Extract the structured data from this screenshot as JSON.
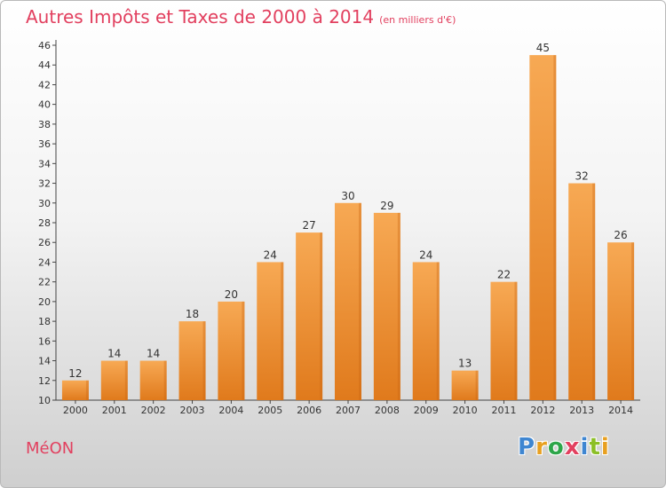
{
  "header": {
    "title": "Autres Impôts et Taxes de 2000 à 2014",
    "unit": "(en milliers d'€)"
  },
  "footer": {
    "commune": "MéON",
    "logo_text": "Proxiti",
    "logo_letters": [
      "P",
      "r",
      "o",
      "x",
      "i",
      "t",
      "i"
    ],
    "logo_colors": [
      "#3f86d1",
      "#e8a020",
      "#2da64a",
      "#e2405f",
      "#3f86d1",
      "#8cbf26",
      "#e8a020"
    ]
  },
  "colors": {
    "title": "#e2405f",
    "bar_light": "#f7a954",
    "bar_dark": "#e07a1c",
    "axis": "#444444"
  },
  "chart_data": {
    "type": "bar",
    "title": "Autres Impôts et Taxes de 2000 à 2014",
    "subtitle": "(en milliers d'€)",
    "xlabel": "",
    "ylabel": "",
    "categories": [
      "2000",
      "2001",
      "2002",
      "2003",
      "2004",
      "2005",
      "2006",
      "2007",
      "2008",
      "2009",
      "2010",
      "2011",
      "2012",
      "2013",
      "2014"
    ],
    "values": [
      12,
      14,
      14,
      18,
      20,
      24,
      27,
      30,
      29,
      24,
      13,
      22,
      45,
      32,
      26
    ],
    "data_labels": [
      "12",
      "14",
      "14",
      "18",
      "20",
      "24",
      "27",
      "30",
      "29",
      "24",
      "13",
      "22",
      "45",
      "32",
      "26"
    ],
    "ylim": [
      10,
      46
    ],
    "yticks": [
      10,
      12,
      14,
      16,
      18,
      20,
      22,
      24,
      26,
      28,
      30,
      32,
      34,
      36,
      38,
      40,
      42,
      44,
      46
    ],
    "grid": false
  }
}
